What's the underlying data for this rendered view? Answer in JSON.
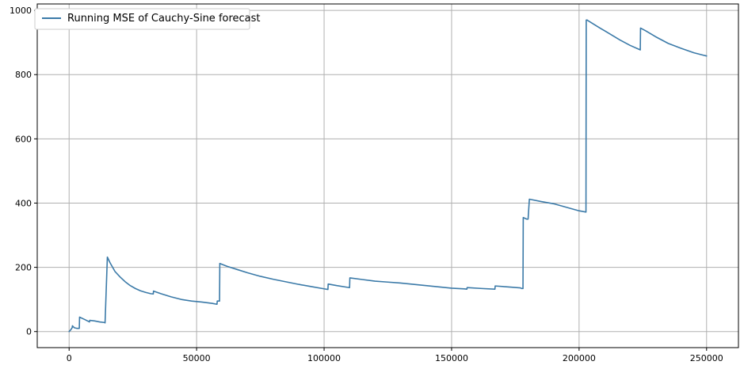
{
  "chart_data": {
    "type": "line",
    "title": "",
    "xlabel": "",
    "ylabel": "",
    "xlim": [
      -12500,
      262500
    ],
    "ylim": [
      -50,
      1020
    ],
    "grid": true,
    "legend": {
      "placement": "top-left",
      "entries": [
        "Running MSE of Cauchy-Sine forecast"
      ]
    },
    "x_ticks": [
      {
        "value": 0,
        "label": "0"
      },
      {
        "value": 50000,
        "label": "50000"
      },
      {
        "value": 100000,
        "label": "100000"
      },
      {
        "value": 150000,
        "label": "150000"
      },
      {
        "value": 200000,
        "label": "200000"
      },
      {
        "value": 250000,
        "label": "250000"
      }
    ],
    "y_ticks": [
      {
        "value": 0,
        "label": "0"
      },
      {
        "value": 200,
        "label": "200"
      },
      {
        "value": 400,
        "label": "400"
      },
      {
        "value": 600,
        "label": "600"
      },
      {
        "value": 800,
        "label": "800"
      },
      {
        "value": 1000,
        "label": "1000"
      }
    ],
    "series": [
      {
        "name": "Running MSE of Cauchy-Sine forecast",
        "color": "#3b7aa8",
        "x": [
          0,
          600,
          1200,
          1300,
          2000,
          3000,
          4000,
          4100,
          6000,
          8000,
          8100,
          10000,
          12000,
          14000,
          14100,
          15000,
          16000,
          18000,
          20000,
          22000,
          24000,
          26000,
          28000,
          30000,
          32000,
          33000,
          33100,
          36000,
          40000,
          44000,
          48000,
          52000,
          56000,
          58000,
          58100,
          59000,
          59100,
          62000,
          66000,
          70000,
          75000,
          80000,
          85000,
          90000,
          95000,
          100000,
          101500,
          101600,
          105000,
          109000,
          110000,
          110100,
          115000,
          120000,
          125000,
          130000,
          135000,
          140000,
          145000,
          150000,
          155000,
          156000,
          156100,
          162000,
          167000,
          167100,
          172000,
          177000,
          177500,
          178000,
          178100,
          179500,
          180000,
          180500,
          180600,
          185000,
          190000,
          195000,
          200000,
          202700,
          202800,
          203200,
          203300,
          208000,
          212000,
          216000,
          220000,
          224000,
          224100,
          226000,
          230000,
          235000,
          240000,
          245000,
          250000
        ],
        "y": [
          0,
          5,
          12,
          18,
          12,
          10,
          10,
          45,
          38,
          30,
          35,
          33,
          30,
          28,
          27,
          232,
          215,
          187,
          170,
          155,
          143,
          134,
          127,
          122,
          118,
          117,
          126,
          118,
          108,
          100,
          95,
          92,
          88,
          85,
          95,
          95,
          212,
          203,
          193,
          183,
          172,
          163,
          155,
          147,
          140,
          133,
          131,
          148,
          143,
          138,
          137,
          167,
          162,
          157,
          154,
          151,
          147,
          143,
          139,
          135,
          133,
          132,
          137,
          134,
          132,
          142,
          139,
          136,
          134,
          134,
          355,
          350,
          350,
          412,
          412,
          405,
          398,
          387,
          376,
          372,
          970,
          970,
          969,
          946,
          927,
          908,
          891,
          877,
          945,
          937,
          918,
          897,
          882,
          868,
          858
        ]
      }
    ]
  }
}
